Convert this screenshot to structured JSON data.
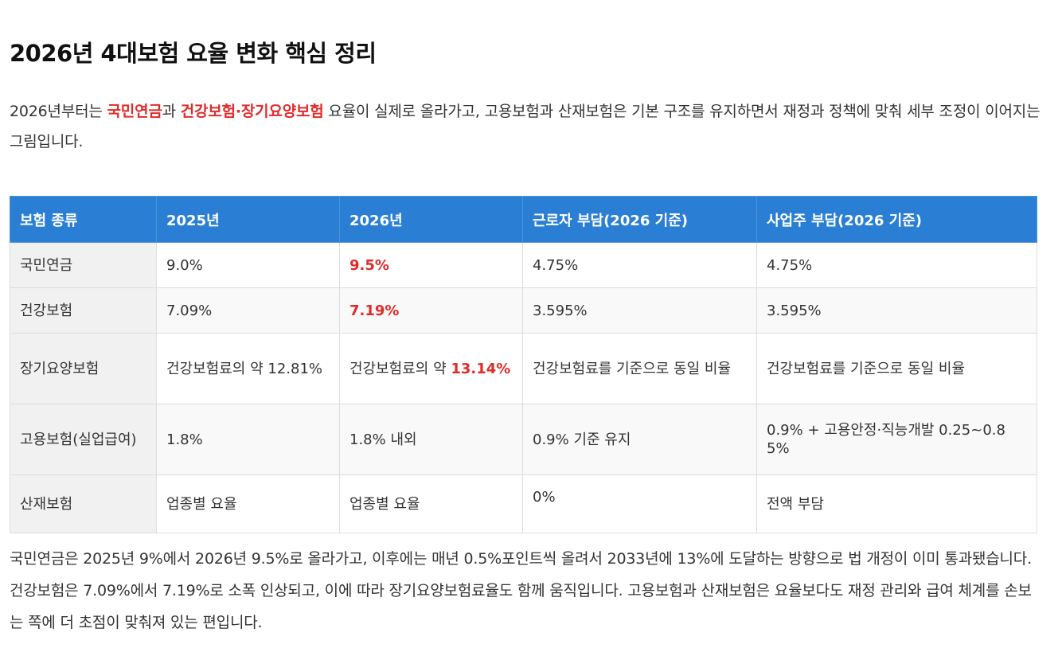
{
  "title": "2026년 4대보험 요율 변화 핵심 정리",
  "intro": {
    "prefix": "2026년부터는 ",
    "highlight1": "국민연금",
    "mid": "과 ",
    "highlight2": "건강보험·장기요양보험",
    "suffix": " 요율이 실제로 올라가고, 고용보험과 산재보험은 기본 구조를 유지하면서 재정과 정책에 맞춰 세부 조정이 이어지는 그림입니다."
  },
  "table": {
    "headers": [
      "보험 종류",
      "2025년",
      "2026년",
      "근로자 부담(2026 기준)",
      "사업주 부담(2026 기준)"
    ],
    "rows": [
      {
        "type": "국민연금",
        "y2025": "9.0%",
        "y2026_prefix": "",
        "y2026_highlight": "9.5%",
        "worker": "4.75%",
        "employer": "4.75%"
      },
      {
        "type": "건강보험",
        "y2025": "7.09%",
        "y2026_prefix": "",
        "y2026_highlight": "7.19%",
        "worker": "3.595%",
        "employer": "3.595%"
      },
      {
        "type": "장기요양보험",
        "y2025": "건강보험료의 약 12.81%",
        "y2026_prefix": "건강보험료의 약 ",
        "y2026_highlight": "13.14%",
        "worker": "건강보험료를 기준으로 동일 비율",
        "employer": "건강보험료를 기준으로 동일 비율"
      },
      {
        "type": "고용보험(실업급여)",
        "y2025": "1.8%",
        "y2026_prefix": "1.8% 내외",
        "y2026_highlight": "",
        "worker": "0.9% 기준 유지",
        "employer": "0.9% + 고용안정·직능개발 0.25~0.85%"
      },
      {
        "type": "산재보험",
        "y2025": "업종별 요율",
        "y2026_prefix": "업종별 요율",
        "y2026_highlight": "",
        "worker": "0%",
        "employer": "전액 부담"
      }
    ]
  },
  "outro": "국민연금은 2025년 9%에서 2026년 9.5%로 올라가고, 이후에는 매년 0.5%포인트씩 올려서 2033년에 13%에 도달하는 방향으로 법 개정이 이미 통과됐습니다. 건강보험은 7.09%에서 7.19%로 소폭 인상되고, 이에 따라 장기요양보험료율도 함께 움직입니다. 고용보험과 산재보험은 요율보다도 재정 관리와 급여 체계를 손보는 쪽에 더 초점이 맞춰져 있는 편입니다.",
  "colors": {
    "header_bg": "#2a7fd4",
    "highlight": "#e02b2b",
    "first_col_bg": "#f1f1f1"
  }
}
